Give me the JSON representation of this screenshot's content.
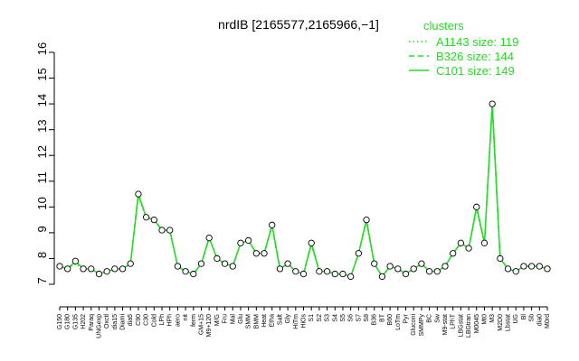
{
  "chart_data": {
    "type": "line",
    "title": "nrdIB [2165577,2165966,−1]",
    "legend_title": "clusters",
    "legend_position": "top-right",
    "categories": [
      "G150",
      "G180",
      "G135",
      "H202",
      "Paraq",
      "UNGexp",
      "Oxctl",
      "dia15",
      "Diami",
      "dia5",
      "C90",
      "C30",
      "Cold",
      "LPh",
      "HPh",
      "aero",
      "nit",
      "ferm",
      "GM+15",
      "M9+120",
      "M/G",
      "Fru",
      "Mal",
      "Glu",
      "SMM",
      "BMM",
      "Heat",
      "Etha",
      "Salt",
      "Gly",
      "HiTm",
      "HiOs",
      "S1",
      "S2",
      "S3",
      "S4",
      "S5",
      "S6",
      "S7",
      "S8",
      "B36",
      "BT",
      "B60",
      "LoTm",
      "Pyr",
      "Gluconi",
      "SMMPy",
      "BC",
      "Sw",
      "M9-stat",
      "LPhT",
      "LBGstat",
      "LBGtran",
      "M0045",
      "Mt0",
      "M3",
      "M2D0",
      "Lbstat",
      "UG",
      "Bl",
      "Sb",
      "dia0",
      "M0rd"
    ],
    "series": [
      {
        "name": "A1143 size: 119",
        "color": "#22dd22",
        "dash": "dotted",
        "values": [
          7.7,
          7.6,
          7.8,
          7.6,
          7.6,
          7.4,
          7.5,
          7.6,
          7.6,
          7.8,
          10.4,
          9.6,
          9.5,
          9.1,
          9.0,
          7.7,
          7.5,
          7.4,
          7.8,
          8.8,
          8.0,
          7.8,
          7.7,
          8.6,
          8.7,
          8.2,
          8.2,
          9.2,
          7.6,
          7.8,
          7.5,
          7.4,
          8.5,
          7.5,
          7.5,
          7.4,
          7.4,
          7.3,
          8.2,
          9.4,
          7.8,
          7.3,
          7.7,
          7.6,
          7.4,
          7.6,
          7.8,
          7.5,
          7.5,
          7.7,
          8.2,
          8.6,
          8.4,
          9.9,
          8.6,
          13.9,
          8.0,
          7.6,
          7.5,
          7.7,
          7.7,
          7.7,
          7.6
        ]
      },
      {
        "name": "B326 size: 144",
        "color": "#22dd22",
        "dash": "dashed",
        "values": [
          7.7,
          7.6,
          7.9,
          7.6,
          7.6,
          7.4,
          7.5,
          7.6,
          7.6,
          7.8,
          10.5,
          9.6,
          9.5,
          9.1,
          9.1,
          7.7,
          7.5,
          7.4,
          7.8,
          8.8,
          8.0,
          7.8,
          7.7,
          8.6,
          8.7,
          8.2,
          8.2,
          9.3,
          7.6,
          7.8,
          7.5,
          7.4,
          8.6,
          7.5,
          7.5,
          7.4,
          7.4,
          7.3,
          8.2,
          9.5,
          7.8,
          7.3,
          7.7,
          7.6,
          7.4,
          7.6,
          7.8,
          7.5,
          7.5,
          7.7,
          8.2,
          8.6,
          8.4,
          10.0,
          8.6,
          14.0,
          8.0,
          7.6,
          7.5,
          7.7,
          7.7,
          7.7,
          7.6
        ]
      },
      {
        "name": "C101 size: 149",
        "color": "#22dd22",
        "dash": "solid",
        "values": [
          7.7,
          7.6,
          7.9,
          7.6,
          7.6,
          7.4,
          7.5,
          7.6,
          7.6,
          7.8,
          10.5,
          9.6,
          9.5,
          9.1,
          9.1,
          7.7,
          7.5,
          7.4,
          7.8,
          8.8,
          8.0,
          7.8,
          7.7,
          8.6,
          8.7,
          8.2,
          8.2,
          9.3,
          7.6,
          7.8,
          7.5,
          7.4,
          8.6,
          7.5,
          7.5,
          7.4,
          7.4,
          7.3,
          8.2,
          9.5,
          7.8,
          7.3,
          7.7,
          7.6,
          7.4,
          7.6,
          7.8,
          7.5,
          7.5,
          7.7,
          8.2,
          8.6,
          8.4,
          10.0,
          8.6,
          14.0,
          8.0,
          7.6,
          7.5,
          7.7,
          7.7,
          7.7,
          7.6
        ]
      }
    ],
    "ylim": [
      7,
      16
    ],
    "yticks": [
      7,
      8,
      9,
      10,
      11,
      12,
      13,
      14,
      15,
      16
    ]
  }
}
